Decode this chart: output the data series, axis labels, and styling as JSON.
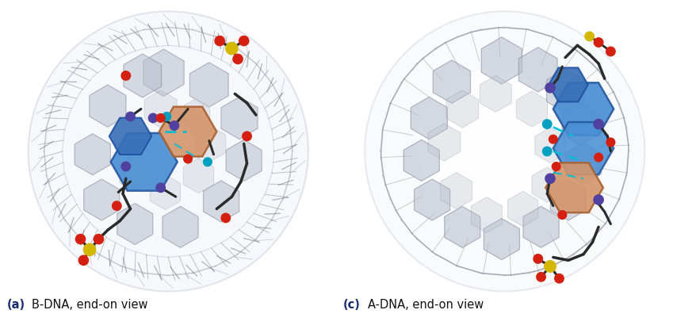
{
  "bg_color": "#ffffff",
  "left_caption_bold": "(a)",
  "left_caption_normal": "B-DNA, end-on view",
  "right_caption_bold": "(c)",
  "right_caption_normal": "A-DNA, end-on view",
  "caption_fontsize": 10.5,
  "hex_gray_fill": "#b8bfcc",
  "hex_gray_edge": "#8890a0",
  "hex_blue_fill": "#4a8fd4",
  "hex_orange_fill": "#d4956a",
  "dashed_cyan": "#00c0d8",
  "bond_dark": "#2a2a2a",
  "atom_red": "#d42010",
  "atom_yellow": "#d4b800",
  "atom_blue_dark": "#3040a0",
  "atom_cyan": "#00a0c0",
  "atom_purple": "#5040a0",
  "wire_gray": "#909090",
  "wire_light": "#b8bfc8",
  "outer_ring_fill": "#dde2ea",
  "outer_ring_edge": "#aab0bc",
  "caption_bold_color": "#1a2d70"
}
